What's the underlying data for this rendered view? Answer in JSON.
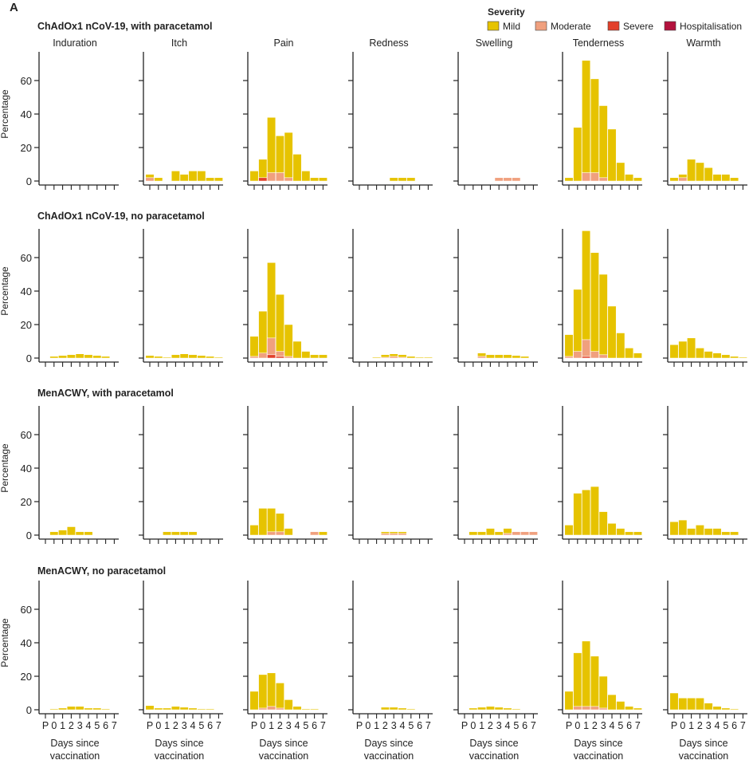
{
  "panel_label": "A",
  "chart_data": {
    "type": "bar",
    "stacked": true,
    "ylabel": "Percentage",
    "xlabel": "Days since vaccination",
    "xlabel_lines": [
      "Days since",
      "vaccination"
    ],
    "categories": [
      "P",
      "0",
      "1",
      "2",
      "3",
      "4",
      "5",
      "6",
      "7"
    ],
    "yticks": [
      0,
      20,
      40,
      60
    ],
    "ylim": [
      0,
      77
    ],
    "legend": {
      "title": "Severity",
      "position": "top-right",
      "items": [
        {
          "key": "mild",
          "label": "Mild",
          "color": "#e6c300"
        },
        {
          "key": "moderate",
          "label": "Moderate",
          "color": "#f0a07e"
        },
        {
          "key": "severe",
          "label": "Severe",
          "color": "#e2402a"
        },
        {
          "key": "hospitalisation",
          "label": "Hospitalisation",
          "color": "#b3123d"
        }
      ]
    },
    "symptoms": [
      "Induration",
      "Itch",
      "Pain",
      "Redness",
      "Swelling",
      "Tenderness",
      "Warmth"
    ],
    "rows": [
      {
        "title": "ChAdOx1 nCoV-19, with paracetamol",
        "panels": [
          {},
          {
            "mild": [
              2,
              2,
              0,
              6,
              4,
              6,
              6,
              2,
              2
            ],
            "moderate": [
              2,
              0,
              0,
              0,
              0,
              0,
              0,
              0,
              0
            ]
          },
          {
            "mild": [
              6,
              11,
              33,
              22,
              27,
              16,
              6,
              2,
              2
            ],
            "moderate": [
              0,
              0,
              5,
              5,
              2,
              0,
              0,
              0,
              0
            ],
            "severe": [
              0,
              2,
              0,
              0,
              0,
              0,
              0,
              0,
              0
            ]
          },
          {
            "mild": [
              0,
              0,
              0,
              0,
              2,
              2,
              2,
              0,
              0
            ]
          },
          {
            "moderate": [
              0,
              0,
              0,
              0,
              2,
              2,
              2,
              0,
              0
            ]
          },
          {
            "mild": [
              2,
              32,
              67,
              56,
              43,
              31,
              11,
              4,
              2
            ],
            "moderate": [
              0,
              0,
              5,
              5,
              2,
              0,
              0,
              0,
              0
            ]
          },
          {
            "mild": [
              2,
              2,
              13,
              11,
              8,
              4,
              4,
              2,
              0
            ],
            "moderate": [
              0,
              2,
              0,
              0,
              0,
              0,
              0,
              0,
              0
            ]
          }
        ]
      },
      {
        "title": "ChAdOx1 nCoV-19, no paracetamol",
        "panels": [
          {
            "mild": [
              0,
              1,
              1.5,
              2,
              2.5,
              2,
              1.5,
              1,
              0
            ]
          },
          {
            "mild": [
              1.5,
              1,
              0.5,
              2,
              2.5,
              2,
              1.5,
              1,
              0.5
            ]
          },
          {
            "mild": [
              12,
              25,
              45,
              34,
              19,
              10,
              4,
              2,
              2
            ],
            "moderate": [
              1,
              3,
              10,
              3,
              1,
              0,
              0,
              0,
              0
            ],
            "severe": [
              0,
              0,
              2,
              1,
              0,
              0,
              0,
              0,
              0
            ]
          },
          {
            "mild": [
              0,
              0,
              0.5,
              1.5,
              1.5,
              1.5,
              1,
              0.5,
              0.5
            ],
            "moderate": [
              0,
              0,
              0,
              0.5,
              1,
              0.5,
              0,
              0,
              0
            ]
          },
          {
            "mild": [
              0,
              0,
              2,
              2,
              2,
              2,
              1.5,
              1,
              0
            ],
            "moderate": [
              0,
              0,
              1,
              0,
              0,
              0,
              0,
              0,
              0
            ]
          },
          {
            "mild": [
              13,
              37,
              65,
              59,
              48,
              31,
              15,
              6,
              3
            ],
            "moderate": [
              1,
              4,
              10,
              4,
              2,
              0,
              0,
              0,
              0
            ],
            "severe": [
              0,
              0,
              1,
              0,
              0,
              0,
              0,
              0,
              0
            ]
          },
          {
            "mild": [
              8,
              10,
              12,
              6,
              4,
              3,
              2,
              1,
              0.5
            ]
          }
        ]
      },
      {
        "title": "MenACWY, with paracetamol",
        "panels": [
          {
            "mild": [
              0,
              2,
              3,
              5,
              2,
              2,
              0,
              0,
              0
            ]
          },
          {
            "mild": [
              0,
              0,
              2,
              2,
              2,
              2,
              0,
              0,
              0
            ]
          },
          {
            "mild": [
              6,
              16,
              14,
              11,
              4,
              0,
              0,
              0,
              2
            ],
            "moderate": [
              0,
              0,
              2,
              2,
              0,
              0,
              0,
              2,
              0
            ]
          },
          {
            "mild": [
              0,
              0,
              0,
              1,
              1,
              1,
              0,
              0,
              0
            ],
            "moderate": [
              0,
              0,
              0,
              1,
              1,
              1,
              0,
              0,
              0
            ]
          },
          {
            "mild": [
              0,
              2,
              2,
              4,
              2,
              3,
              0,
              0,
              0
            ],
            "moderate": [
              0,
              0,
              0,
              0,
              0,
              1,
              2,
              2,
              2
            ]
          },
          {
            "mild": [
              6,
              25,
              27,
              29,
              14,
              7,
              4,
              2,
              2
            ]
          },
          {
            "mild": [
              8,
              9,
              4,
              6,
              4,
              4,
              2,
              2,
              0
            ]
          }
        ]
      },
      {
        "title": "MenACWY, no paracetamol",
        "panels": [
          {
            "mild": [
              0,
              0.5,
              1,
              2,
              2,
              1,
              1,
              0.5,
              0
            ]
          },
          {
            "mild": [
              2.5,
              1,
              1,
              2,
              1.5,
              1,
              0.5,
              0.5,
              0
            ]
          },
          {
            "mild": [
              11,
              20,
              20,
              15,
              6,
              2,
              0.5,
              0.5,
              0
            ],
            "moderate": [
              0,
              1,
              2,
              1,
              0,
              0,
              0,
              0,
              0
            ]
          },
          {
            "mild": [
              0,
              0,
              0,
              1.5,
              1.5,
              1,
              0.5,
              0,
              0
            ]
          },
          {
            "mild": [
              0,
              1,
              1.5,
              2,
              1.5,
              1,
              0.5,
              0,
              0
            ]
          },
          {
            "mild": [
              11,
              32,
              39,
              30,
              19,
              9,
              5,
              2,
              1
            ],
            "moderate": [
              0,
              2,
              2,
              2,
              1,
              0,
              0,
              0,
              0
            ]
          },
          {
            "mild": [
              10,
              7,
              7,
              7,
              4,
              2,
              1,
              0.5,
              0
            ]
          }
        ]
      }
    ]
  }
}
